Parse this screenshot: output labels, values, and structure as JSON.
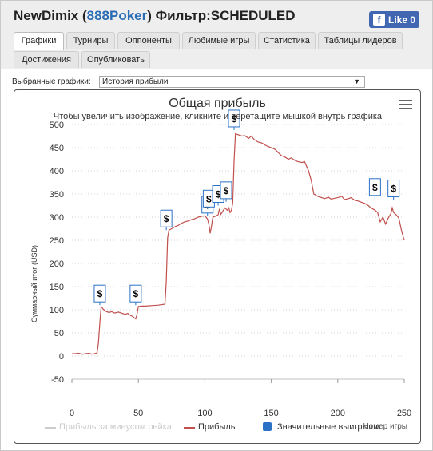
{
  "header": {
    "user": "NewDimix",
    "site": "888Poker",
    "filter_label": "Фильтр:",
    "filter_value": "SCHEDULED",
    "like_label": "Like 0"
  },
  "tabs": [
    {
      "label": "Графики",
      "active": true
    },
    {
      "label": "Турниры",
      "active": false
    },
    {
      "label": "Оппоненты",
      "active": false
    },
    {
      "label": "Любимые игры",
      "active": false
    },
    {
      "label": "Статистика",
      "active": false
    },
    {
      "label": "Таблицы лидеров",
      "active": false
    },
    {
      "label": "Достижения",
      "active": false
    },
    {
      "label": "Опубликовать",
      "active": false
    }
  ],
  "select": {
    "label": "Выбранные графики:",
    "value": "История прибыли",
    "arrow": "▼"
  },
  "chart": {
    "title": "Общая прибыль",
    "subtitle": "Чтобы увеличить изображение, кликните и перетащите мышкой внутрь графика."
  },
  "chart_data": {
    "type": "line",
    "ylabel": "Суммарный итог (USD)",
    "xlabel": "Номер игры",
    "ylim": [
      -50,
      500
    ],
    "xlim": [
      0,
      250
    ],
    "x_ticks": [
      "0",
      "50",
      "100",
      "150",
      "200",
      "250"
    ],
    "y_ticks": [
      "-50",
      "0",
      "50",
      "100",
      "150",
      "200",
      "250",
      "300",
      "350",
      "400",
      "450",
      "500"
    ],
    "grid": "horizontal dotted",
    "legend_placement": "bottom",
    "legend": [
      {
        "name": "Прибыль за минусом рейка",
        "color": "#cccccc",
        "hidden": true
      },
      {
        "name": "Прибыль",
        "color": "#c0504d"
      },
      {
        "name": "Значительные выигрыши",
        "color": "#2b72c7"
      }
    ],
    "series": [
      {
        "name": "Прибыль",
        "color": "#c0504d",
        "x": [
          0,
          2,
          5,
          8,
          10,
          13,
          15,
          17,
          19,
          20,
          21,
          22,
          24,
          26,
          28,
          30,
          32,
          35,
          38,
          40,
          42,
          44,
          46,
          48,
          49,
          50,
          52,
          55,
          60,
          65,
          70,
          71,
          72,
          73,
          75,
          78,
          80,
          82,
          85,
          88,
          90,
          92,
          95,
          98,
          100,
          102,
          103,
          104,
          105,
          106,
          108,
          110,
          111,
          112,
          113,
          115,
          117,
          118,
          119,
          120,
          121,
          122,
          123,
          125,
          128,
          130,
          133,
          135,
          137,
          140,
          143,
          145,
          148,
          150,
          153,
          155,
          158,
          160,
          163,
          165,
          168,
          170,
          173,
          175,
          178,
          180,
          182,
          185,
          188,
          190,
          193,
          195,
          198,
          200,
          203,
          205,
          208,
          210,
          213,
          215,
          218,
          220,
          223,
          225,
          228,
          230,
          232,
          234,
          236,
          238,
          240,
          241,
          242,
          244,
          246,
          248,
          250
        ],
        "values": [
          5,
          5,
          6,
          4,
          5,
          6,
          4,
          5,
          7,
          30,
          70,
          107,
          100,
          96,
          94,
          96,
          93,
          95,
          92,
          90,
          92,
          88,
          85,
          80,
          90,
          107,
          108,
          108,
          109,
          110,
          112,
          160,
          255,
          272,
          275,
          280,
          282,
          286,
          290,
          292,
          295,
          296,
          300,
          302,
          303,
          296,
          285,
          265,
          280,
          300,
          302,
          305,
          318,
          306,
          310,
          320,
          315,
          320,
          310,
          315,
          330,
          420,
          480,
          478,
          475,
          476,
          470,
          475,
          468,
          462,
          460,
          456,
          452,
          450,
          446,
          440,
          432,
          430,
          425,
          428,
          422,
          420,
          418,
          420,
          400,
          380,
          350,
          345,
          342,
          340,
          343,
          339,
          341,
          342,
          345,
          338,
          340,
          342,
          336,
          335,
          332,
          330,
          325,
          320,
          315,
          310,
          290,
          300,
          285,
          298,
          308,
          320,
          310,
          305,
          298,
          270,
          250
        ]
      }
    ],
    "markers": {
      "name": "Значительные выигрыши",
      "symbol": "$",
      "points": [
        {
          "x": 21,
          "y": 110
        },
        {
          "x": 48,
          "y": 110
        },
        {
          "x": 71,
          "y": 272
        },
        {
          "x": 102,
          "y": 302
        },
        {
          "x": 103,
          "y": 315
        },
        {
          "x": 110,
          "y": 325
        },
        {
          "x": 116,
          "y": 333
        },
        {
          "x": 122,
          "y": 488
        },
        {
          "x": 228,
          "y": 340
        },
        {
          "x": 242,
          "y": 337
        }
      ]
    }
  }
}
